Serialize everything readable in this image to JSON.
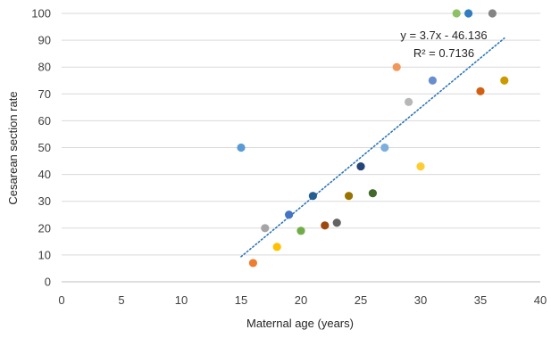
{
  "chart_data": {
    "type": "scatter",
    "title": "",
    "xlabel": "Maternal age (years)",
    "ylabel": "Cesarean section rate",
    "xlim": [
      0,
      40
    ],
    "ylim": [
      0,
      100
    ],
    "x_ticks": [
      "0",
      "5",
      "10",
      "15",
      "20",
      "25",
      "30",
      "35",
      "40"
    ],
    "y_ticks": [
      "0",
      "10",
      "20",
      "30",
      "40",
      "50",
      "60",
      "70",
      "80",
      "90",
      "100"
    ],
    "grid": "horizontal",
    "legend": "none",
    "points": [
      {
        "x": 15,
        "y": 50,
        "color": "#5B9BD5"
      },
      {
        "x": 16,
        "y": 7,
        "color": "#ED7D31"
      },
      {
        "x": 17,
        "y": 20,
        "color": "#A5A5A5"
      },
      {
        "x": 18,
        "y": 13,
        "color": "#FFC000"
      },
      {
        "x": 19,
        "y": 25,
        "color": "#4472C4"
      },
      {
        "x": 20,
        "y": 19,
        "color": "#70AD47"
      },
      {
        "x": 21,
        "y": 32,
        "color": "#255E91"
      },
      {
        "x": 22,
        "y": 21,
        "color": "#9E480E"
      },
      {
        "x": 23,
        "y": 22,
        "color": "#636363"
      },
      {
        "x": 24,
        "y": 32,
        "color": "#997300"
      },
      {
        "x": 25,
        "y": 43,
        "color": "#264478"
      },
      {
        "x": 26,
        "y": 33,
        "color": "#43682B"
      },
      {
        "x": 27,
        "y": 50,
        "color": "#7CAFDD"
      },
      {
        "x": 28,
        "y": 80,
        "color": "#F1975A"
      },
      {
        "x": 29,
        "y": 67,
        "color": "#B7B7B7"
      },
      {
        "x": 30,
        "y": 43,
        "color": "#FFCD33"
      },
      {
        "x": 31,
        "y": 75,
        "color": "#698ED0"
      },
      {
        "x": 33,
        "y": 100,
        "color": "#8CC168"
      },
      {
        "x": 34,
        "y": 100,
        "color": "#327DC2"
      },
      {
        "x": 35,
        "y": 71,
        "color": "#D26012"
      },
      {
        "x": 36,
        "y": 100,
        "color": "#848484"
      },
      {
        "x": 37,
        "y": 75,
        "color": "#CC9A00"
      }
    ],
    "trendline": {
      "type": "linear",
      "slope": 3.7,
      "intercept": -46.136,
      "x_range": [
        15,
        37
      ],
      "color": "#2E75B6",
      "style": "dotted"
    },
    "annotations": {
      "equation": "y = 3.7x - 46.136",
      "r_squared": "R² = 0.7136"
    },
    "colors": {
      "gridline": "#D9D9D9",
      "axis": "#BFBFBF"
    }
  }
}
